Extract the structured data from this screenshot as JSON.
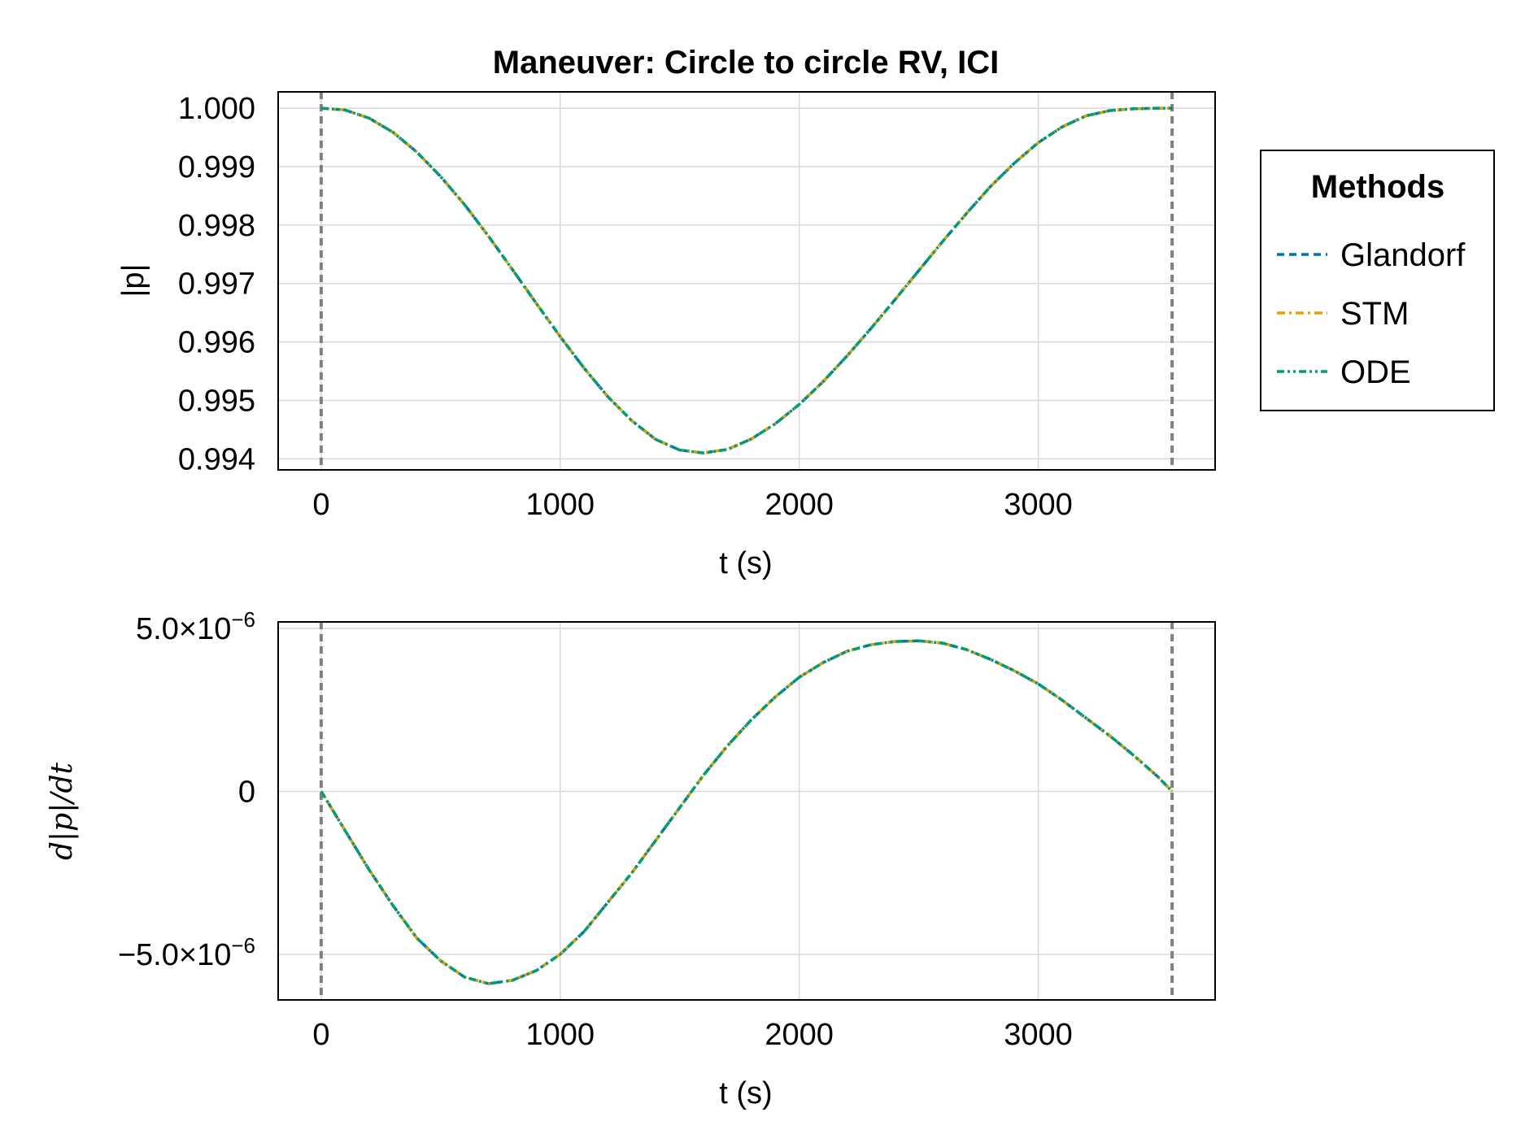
{
  "chart_data": [
    {
      "type": "line",
      "title": "Maneuver: Circle to circle RV, ICI",
      "xlabel": "t (s)",
      "ylabel": "|p|",
      "xlim": [
        -180,
        3740
      ],
      "ylim": [
        0.99381,
        1.00028
      ],
      "x_ticks": [
        0,
        1000,
        2000,
        3000
      ],
      "x_tick_labels": [
        "0",
        "1000",
        "2000",
        "3000"
      ],
      "y_ticks": [
        0.994,
        0.995,
        0.996,
        0.997,
        0.998,
        0.999,
        1.0
      ],
      "y_tick_labels": [
        "0.994",
        "0.995",
        "0.996",
        "0.997",
        "0.998",
        "0.999",
        "1.000"
      ],
      "grid": true,
      "vlines": [
        0,
        3560
      ],
      "x": [
        0,
        100,
        200,
        300,
        400,
        500,
        600,
        700,
        800,
        900,
        1000,
        1100,
        1200,
        1300,
        1400,
        1500,
        1600,
        1700,
        1800,
        1900,
        2000,
        2100,
        2200,
        2300,
        2400,
        2500,
        2600,
        2700,
        2800,
        2900,
        3000,
        3100,
        3200,
        3300,
        3400,
        3500,
        3560
      ],
      "series": [
        {
          "name": "Glandorf",
          "values": [
            1.0,
            0.99997,
            0.99983,
            0.99959,
            0.99925,
            0.99883,
            0.99835,
            0.99781,
            0.99724,
            0.99666,
            0.99609,
            0.99555,
            0.99506,
            0.99465,
            0.99433,
            0.99415,
            0.9941,
            0.99416,
            0.99434,
            0.9946,
            0.99493,
            0.99532,
            0.99576,
            0.99623,
            0.99672,
            0.99722,
            0.99772,
            0.9982,
            0.99866,
            0.99906,
            0.99941,
            0.99968,
            0.99987,
            0.99996,
            0.99999,
            1.0,
            1.0
          ]
        },
        {
          "name": "STM",
          "values": [
            1.0,
            0.99997,
            0.99983,
            0.99959,
            0.99925,
            0.99883,
            0.99835,
            0.99781,
            0.99724,
            0.99666,
            0.99609,
            0.99555,
            0.99506,
            0.99465,
            0.99433,
            0.99415,
            0.9941,
            0.99416,
            0.99434,
            0.9946,
            0.99493,
            0.99532,
            0.99576,
            0.99623,
            0.99672,
            0.99722,
            0.99772,
            0.9982,
            0.99866,
            0.99906,
            0.99941,
            0.99968,
            0.99987,
            0.99996,
            0.99999,
            1.0,
            1.0
          ]
        },
        {
          "name": "ODE",
          "values": [
            1.0,
            0.99997,
            0.99983,
            0.99959,
            0.99925,
            0.99883,
            0.99835,
            0.99781,
            0.99724,
            0.99666,
            0.99609,
            0.99555,
            0.99506,
            0.99465,
            0.99433,
            0.99415,
            0.9941,
            0.99416,
            0.99434,
            0.9946,
            0.99493,
            0.99532,
            0.99576,
            0.99623,
            0.99672,
            0.99722,
            0.99772,
            0.9982,
            0.99866,
            0.99906,
            0.99941,
            0.99968,
            0.99987,
            0.99996,
            0.99999,
            1.0,
            1.0
          ]
        }
      ]
    },
    {
      "type": "line",
      "title": "",
      "xlabel": "t (s)",
      "ylabel": "d|p|/dt",
      "xlim": [
        -180,
        3740
      ],
      "ylim": [
        -6.4e-06,
        5.2e-06
      ],
      "x_ticks": [
        0,
        1000,
        2000,
        3000
      ],
      "x_tick_labels": [
        "0",
        "1000",
        "2000",
        "3000"
      ],
      "y_ticks": [
        -5e-06,
        0,
        5e-06
      ],
      "y_tick_labels": [
        "−5.0×10",
        "0",
        "5.0×10"
      ],
      "y_tick_exponents": [
        "−6",
        "",
        "−6"
      ],
      "grid": true,
      "vlines": [
        0,
        3560
      ],
      "x": [
        0,
        100,
        200,
        300,
        400,
        500,
        600,
        700,
        800,
        900,
        1000,
        1100,
        1200,
        1300,
        1400,
        1500,
        1600,
        1700,
        1800,
        1900,
        2000,
        2100,
        2200,
        2300,
        2400,
        2500,
        2600,
        2700,
        2800,
        2900,
        3000,
        3100,
        3200,
        3300,
        3400,
        3500,
        3560
      ],
      "series": [
        {
          "name": "Glandorf",
          "values": [
            0,
            -1.2e-06,
            -2.4e-06,
            -3.5e-06,
            -4.5e-06,
            -5.2e-06,
            -5.7e-06,
            -5.9e-06,
            -5.8e-06,
            -5.5e-06,
            -5e-06,
            -4.3e-06,
            -3.4e-06,
            -2.5e-06,
            -1.5e-06,
            -5e-07,
            5e-07,
            1.4e-06,
            2.2e-06,
            2.9e-06,
            3.5e-06,
            3.95e-06,
            4.3e-06,
            4.5e-06,
            4.6e-06,
            4.62e-06,
            4.55e-06,
            4.35e-06,
            4.05e-06,
            3.7e-06,
            3.3e-06,
            2.8e-06,
            2.25e-06,
            1.7e-06,
            1.1e-06,
            4.5e-07,
            0
          ]
        },
        {
          "name": "STM",
          "values": [
            0,
            -1.2e-06,
            -2.4e-06,
            -3.5e-06,
            -4.5e-06,
            -5.2e-06,
            -5.7e-06,
            -5.9e-06,
            -5.8e-06,
            -5.5e-06,
            -5e-06,
            -4.3e-06,
            -3.4e-06,
            -2.5e-06,
            -1.5e-06,
            -5e-07,
            5e-07,
            1.4e-06,
            2.2e-06,
            2.9e-06,
            3.5e-06,
            3.95e-06,
            4.3e-06,
            4.5e-06,
            4.6e-06,
            4.62e-06,
            4.55e-06,
            4.35e-06,
            4.05e-06,
            3.7e-06,
            3.3e-06,
            2.8e-06,
            2.25e-06,
            1.7e-06,
            1.1e-06,
            4.5e-07,
            0
          ]
        },
        {
          "name": "ODE",
          "values": [
            0,
            -1.2e-06,
            -2.4e-06,
            -3.5e-06,
            -4.5e-06,
            -5.2e-06,
            -5.7e-06,
            -5.9e-06,
            -5.8e-06,
            -5.5e-06,
            -5e-06,
            -4.3e-06,
            -3.4e-06,
            -2.5e-06,
            -1.5e-06,
            -5e-07,
            5e-07,
            1.4e-06,
            2.2e-06,
            2.9e-06,
            3.5e-06,
            3.95e-06,
            4.3e-06,
            4.5e-06,
            4.6e-06,
            4.62e-06,
            4.55e-06,
            4.35e-06,
            4.05e-06,
            3.7e-06,
            3.3e-06,
            2.8e-06,
            2.25e-06,
            1.7e-06,
            1.1e-06,
            4.5e-07,
            0
          ]
        }
      ]
    }
  ],
  "legend": {
    "title": "Methods",
    "placement": "right",
    "entries": [
      {
        "label": "Glandorf",
        "color": "#0072b2",
        "dash": "dashed"
      },
      {
        "label": "STM",
        "color": "#e69f00",
        "dash": "dashdot"
      },
      {
        "label": "ODE",
        "color": "#009e73",
        "dash": "dashdotdot"
      }
    ]
  },
  "colors": {
    "Glandorf": "#0072b2",
    "STM": "#e69f00",
    "ODE": "#009e73",
    "vline": "#808080",
    "grid": "#d9d9d9"
  }
}
